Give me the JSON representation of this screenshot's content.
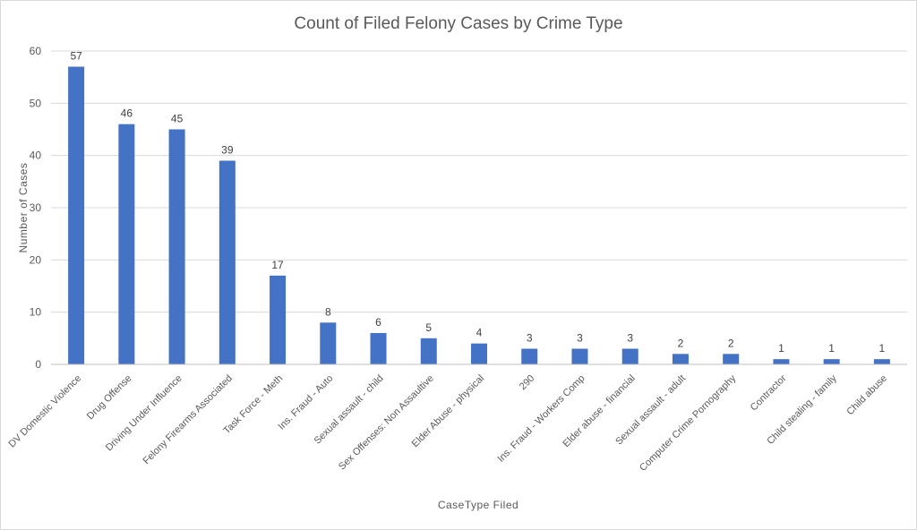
{
  "chart_data": {
    "type": "bar",
    "title": "Count of Filed Felony Cases by Crime Type",
    "xlabel": "CaseType  Filed",
    "ylabel": "Number  of Cases",
    "ylim": [
      0,
      60
    ],
    "yticks": [
      0,
      10,
      20,
      30,
      40,
      50,
      60
    ],
    "grid": true,
    "legend": "none",
    "bar_color": "#4472c4",
    "categories": [
      "DV Domestic Violence",
      "Drug Offense",
      "Driving Under Influence",
      "Felony Firearms Associated",
      "Task Force - Meth",
      "Ins. Fraud - Auto",
      "Sexual assault - child",
      "Sex Offenses: Non Assaultive",
      "Elder Abuse - physical",
      "290",
      "Ins. Fraud - Workers Comp",
      "Elder abuse - financial",
      "Sexual assault - adult",
      "Computer Crime Pornography",
      "Contractor",
      "Child stealing - family",
      "Child abuse"
    ],
    "values": [
      57,
      46,
      45,
      39,
      17,
      8,
      6,
      5,
      4,
      3,
      3,
      3,
      2,
      2,
      1,
      1,
      1
    ]
  }
}
